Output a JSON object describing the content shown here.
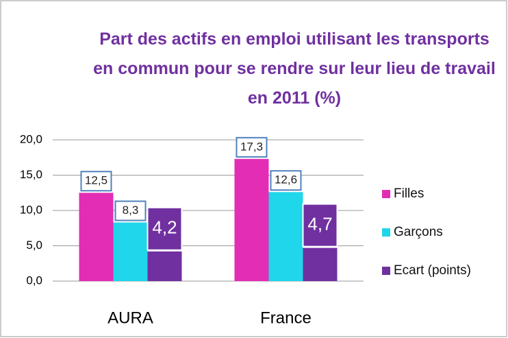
{
  "chart_data": {
    "type": "bar",
    "title": "Part des actifs en emploi utilisant les transports en commun pour se rendre sur leur lieu de travail en 2011 (%)",
    "categories": [
      "AURA",
      "France"
    ],
    "series": [
      {
        "name": "Filles",
        "color": "#e32db4",
        "values": [
          12.5,
          17.3
        ],
        "value_labels": [
          "12,5",
          "17,3"
        ]
      },
      {
        "name": "Garçons",
        "color": "#20d6ea",
        "values": [
          8.3,
          12.6
        ],
        "value_labels": [
          "8,3",
          "12,6"
        ]
      },
      {
        "name": "Ecart (points)",
        "color": "#7030a0",
        "values": [
          4.2,
          4.7
        ],
        "value_labels": [
          "4,2",
          "4,7"
        ]
      }
    ],
    "ylim": [
      0,
      20
    ],
    "yticks": [
      {
        "value": 0,
        "label": "0,0"
      },
      {
        "value": 5,
        "label": "5,0"
      },
      {
        "value": 10,
        "label": "10,0"
      },
      {
        "value": 15,
        "label": "15,0"
      },
      {
        "value": 20,
        "label": "20,0"
      }
    ],
    "grid": true,
    "legend": "right"
  }
}
